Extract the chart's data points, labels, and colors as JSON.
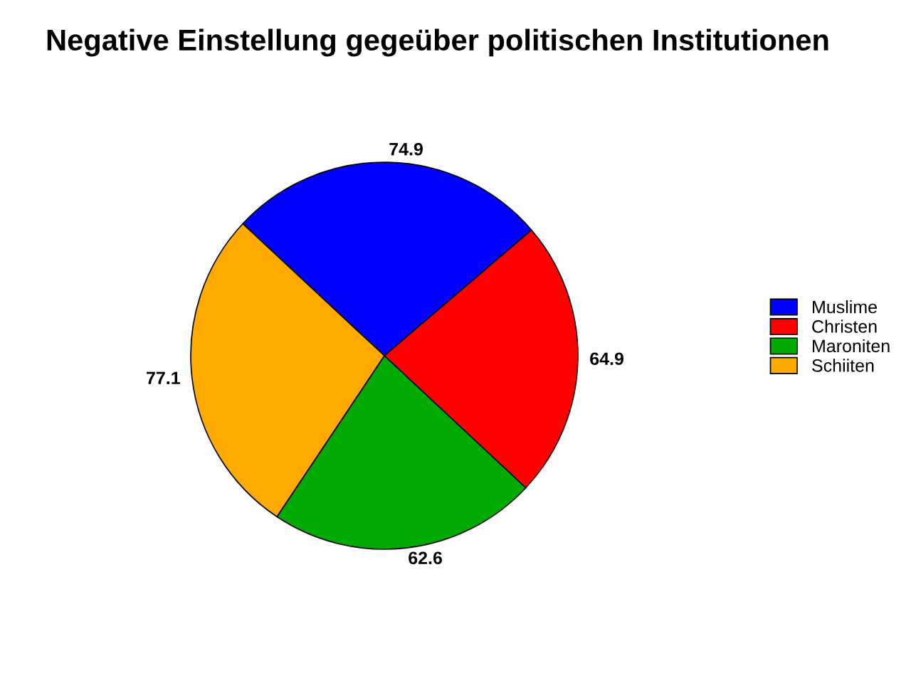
{
  "chart_data": {
    "type": "pie",
    "title": "Negative Einstellung gegeüber politischen Institutionen",
    "categories": [
      "Muslime",
      "Christen",
      "Maroniten",
      "Schiiten"
    ],
    "values": [
      74.9,
      64.9,
      62.6,
      77.1
    ],
    "colors": [
      "#0000ff",
      "#ff0000",
      "#00aa00",
      "#ffaa00"
    ],
    "data_labels": true,
    "legend": "right"
  }
}
